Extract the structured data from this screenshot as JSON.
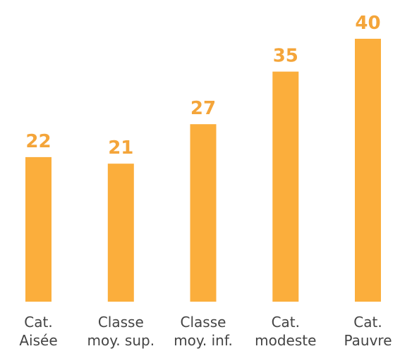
{
  "chart_data": {
    "type": "bar",
    "categories": [
      [
        "Cat.",
        "Aisée"
      ],
      [
        "Classe",
        "moy. sup."
      ],
      [
        "Classe",
        "moy. inf."
      ],
      [
        "Cat.",
        "modeste"
      ],
      [
        "Cat.",
        "Pauvre"
      ]
    ],
    "values": [
      22,
      21,
      27,
      35,
      40
    ],
    "data_labels": [
      "22",
      "21",
      "27",
      "35",
      "40"
    ],
    "ylim": [
      0,
      40
    ],
    "grid": false,
    "legend": "none",
    "colors": {
      "bar": "#FBAE3C",
      "value_label": "#F4A53A",
      "category_label": "#444444"
    }
  }
}
